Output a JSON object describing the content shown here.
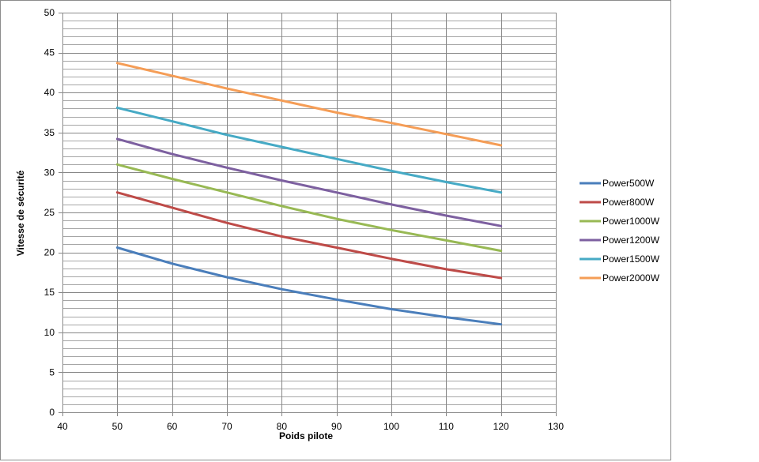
{
  "chart_data": {
    "type": "line",
    "title": "",
    "xlabel": "Poids pilote",
    "ylabel": "Vitesse de sécurité",
    "xlim": [
      40,
      130
    ],
    "ylim": [
      0,
      50
    ],
    "x_ticks": [
      40,
      50,
      60,
      70,
      80,
      90,
      100,
      110,
      120,
      130
    ],
    "y_ticks": [
      0,
      5,
      10,
      15,
      20,
      25,
      30,
      35,
      40,
      45,
      50
    ],
    "grid": true,
    "legend_position": "right",
    "x": [
      50,
      60,
      70,
      80,
      90,
      100,
      110,
      120
    ],
    "series": [
      {
        "name": "Power500W",
        "color": "#4a7ebb",
        "values": [
          20.6,
          18.6,
          16.9,
          15.4,
          14.1,
          12.9,
          11.9,
          11.0
        ]
      },
      {
        "name": "Power800W",
        "color": "#be4b48",
        "values": [
          27.5,
          25.6,
          23.7,
          22.0,
          20.6,
          19.2,
          17.9,
          16.8
        ]
      },
      {
        "name": "Power1000W",
        "color": "#98b954",
        "values": [
          31.0,
          29.2,
          27.5,
          25.8,
          24.2,
          22.8,
          21.5,
          20.2
        ]
      },
      {
        "name": "Power1200W",
        "color": "#7d60a0",
        "values": [
          34.2,
          32.3,
          30.6,
          29.0,
          27.5,
          26.0,
          24.6,
          23.3
        ]
      },
      {
        "name": "Power1500W",
        "color": "#46aac5",
        "values": [
          38.1,
          36.4,
          34.7,
          33.2,
          31.7,
          30.2,
          28.8,
          27.5
        ]
      },
      {
        "name": "Power2000W",
        "color": "#f59d56",
        "values": [
          43.7,
          42.1,
          40.5,
          39.0,
          37.5,
          36.2,
          34.8,
          33.4
        ]
      }
    ]
  }
}
